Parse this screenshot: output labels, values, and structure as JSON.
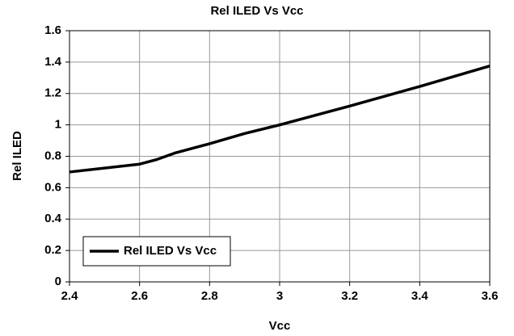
{
  "chart_data": {
    "type": "line",
    "title": "Rel ILED Vs Vcc",
    "x_label": "Vcc",
    "y_label": "Rel ILED",
    "x": [
      2.4,
      2.6,
      2.65,
      2.7,
      2.8,
      2.9,
      3.0,
      3.2,
      3.4,
      3.6
    ],
    "series": [
      {
        "name": "Rel ILED Vs Vcc",
        "color": "#000000",
        "values": [
          0.7,
          0.75,
          0.78,
          0.82,
          0.88,
          0.945,
          1.0,
          1.12,
          1.245,
          1.375
        ]
      }
    ],
    "xlim": [
      2.4,
      3.6
    ],
    "xticks": [
      2.4,
      2.6,
      2.8,
      3,
      3.2,
      3.4,
      3.6
    ],
    "ylim": [
      0,
      1.6
    ],
    "yticks": [
      0,
      0.2,
      0.4,
      0.6,
      0.8,
      1,
      1.2,
      1.4,
      1.6
    ],
    "grid": true,
    "legend": "lower left"
  }
}
